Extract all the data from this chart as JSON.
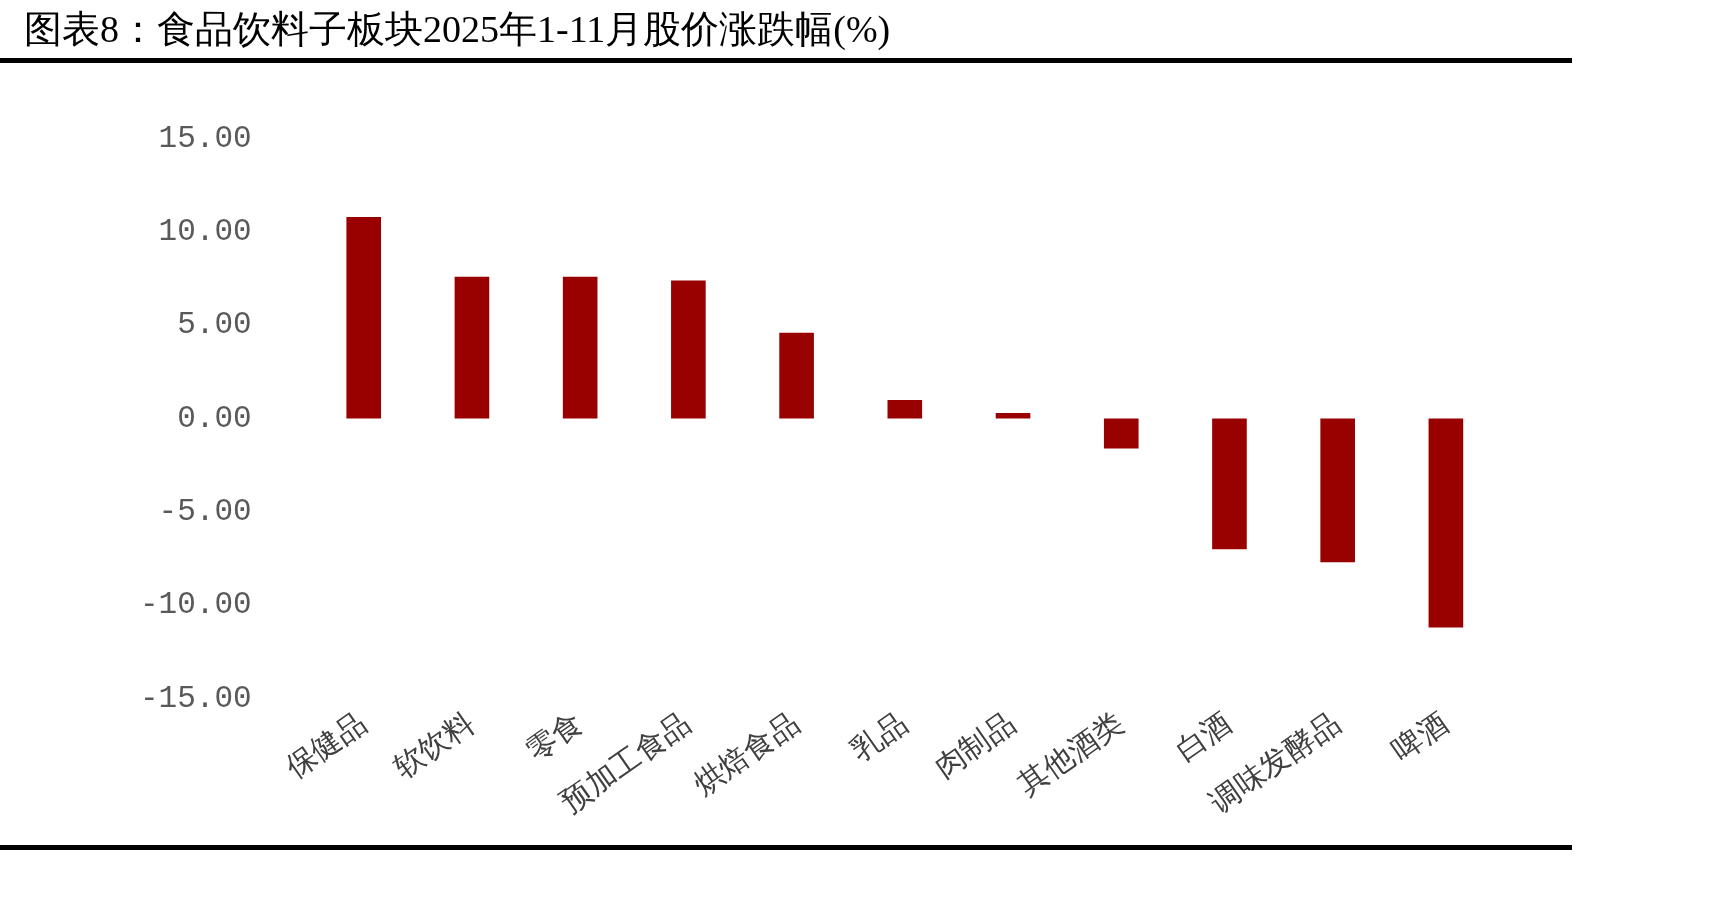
{
  "chart_data": {
    "type": "bar",
    "title": "图表8：食品饮料子板块2025年1-11月股价涨跌幅(%)",
    "categories": [
      "保健品",
      "软饮料",
      "零食",
      "预加工食品",
      "烘焙食品",
      "乳品",
      "肉制品",
      "其他酒类",
      "白酒",
      "调味发酵品",
      "啤酒"
    ],
    "values": [
      10.8,
      7.6,
      7.6,
      7.4,
      4.6,
      1.0,
      0.3,
      -1.6,
      -7.0,
      -7.7,
      -11.2
    ],
    "color": "#990000",
    "ylim": [
      -15,
      15
    ],
    "yticks": [
      {
        "value": -15,
        "label": "-15.00"
      },
      {
        "value": -10,
        "label": "-10.00"
      },
      {
        "value": -5,
        "label": "-5.00"
      },
      {
        "value": 0,
        "label": "0.00"
      },
      {
        "value": 5,
        "label": "5.00"
      },
      {
        "value": 10,
        "label": "10.00"
      },
      {
        "value": 15,
        "label": "15.00"
      }
    ]
  }
}
